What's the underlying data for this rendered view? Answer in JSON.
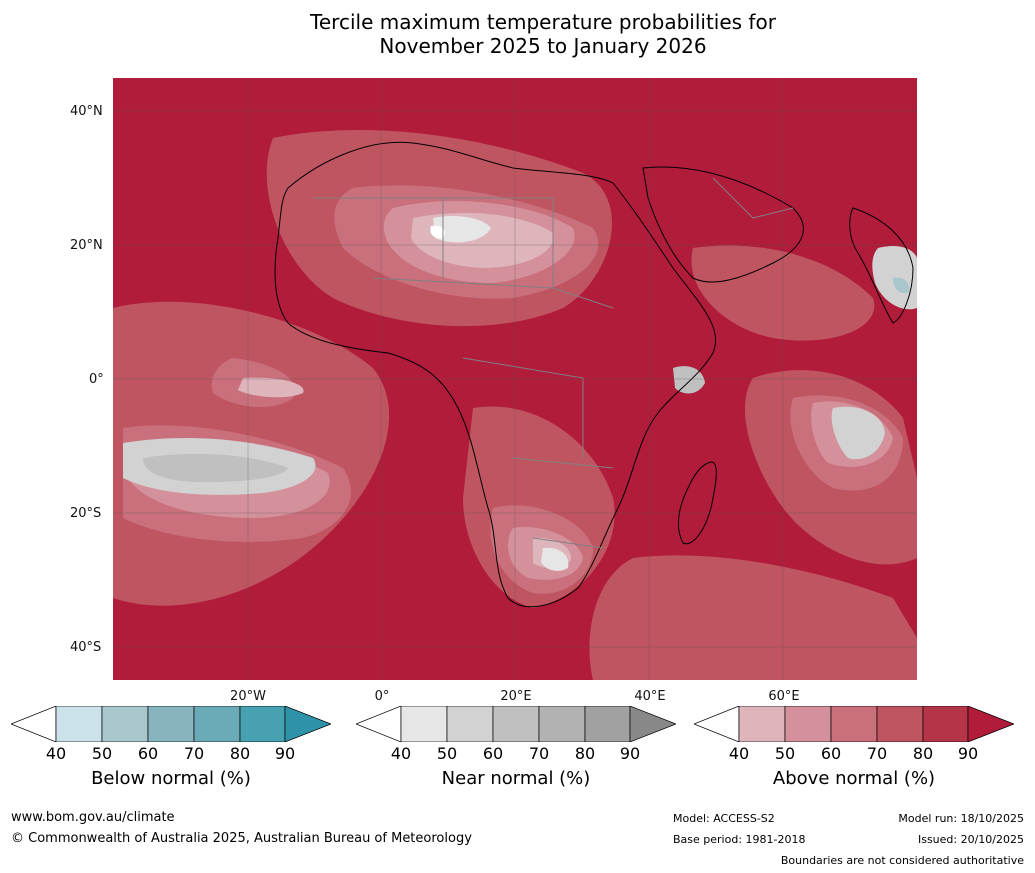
{
  "title": {
    "line1": "Tercile maximum temperature probabilities for",
    "line2": "November 2025 to January 2026"
  },
  "map": {
    "region": "Africa",
    "lat_labels": [
      "40°N",
      "20°N",
      "0°",
      "20°S",
      "40°S"
    ],
    "lon_labels": [
      "20°W",
      "0°",
      "20°E",
      "40°E",
      "60°E"
    ],
    "palette": {
      "above": [
        "#dfb5bc",
        "#d4919b",
        "#c9707c",
        "#c05562",
        "#b63448",
        "#b01c3a"
      ],
      "near": [
        "#e6e6e6",
        "#d2d2d2",
        "#c0c0c0",
        "#b2b2b2",
        "#a1a1a1",
        "#888888"
      ],
      "below": [
        "#cbe2ea",
        "#a9c6cd",
        "#88b4c0",
        "#6babb8",
        "#48a1b1",
        "#2e93a9"
      ]
    }
  },
  "legend": {
    "ticks": [
      "40",
      "50",
      "60",
      "70",
      "80",
      "90"
    ],
    "below": {
      "caption": "Below normal (%)"
    },
    "near": {
      "caption": "Near normal (%)"
    },
    "above": {
      "caption": "Above normal (%)"
    }
  },
  "footer": {
    "website": "www.bom.gov.au/climate",
    "copyright": "© Commonwealth of Australia 2025, Australian Bureau of Meteorology",
    "model": "Model: ACCESS-S2",
    "base_period": "Base period: 1981-2018",
    "model_run": "Model run: 18/10/2025",
    "issued": "Issued: 20/10/2025",
    "disclaimer": "Boundaries are not considered authoritative"
  }
}
